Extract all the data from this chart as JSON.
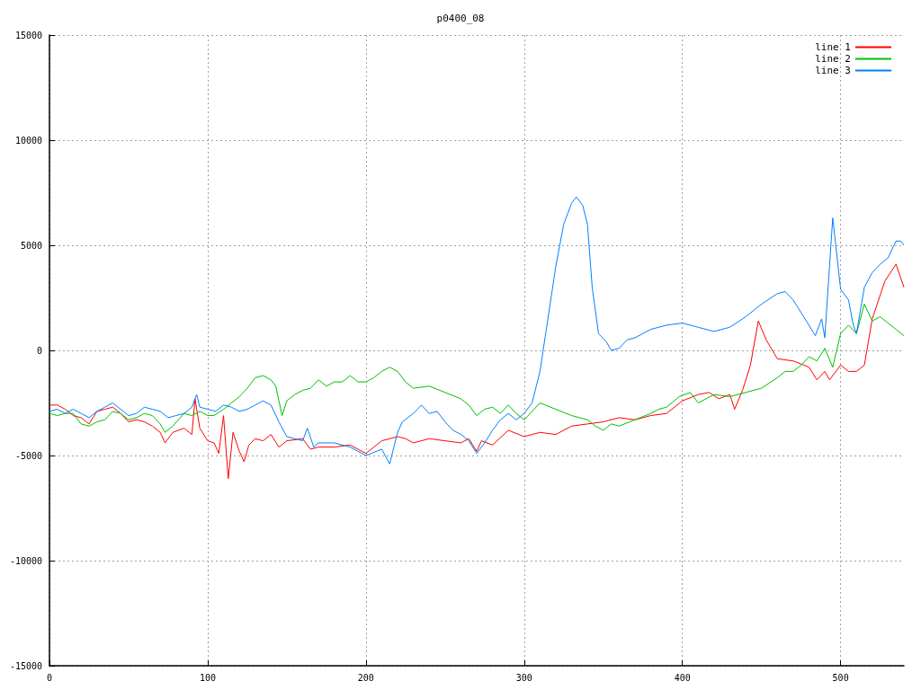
{
  "chart_data": {
    "type": "line",
    "title": "p0400_08",
    "xlim": [
      0,
      540
    ],
    "xticks": [
      0,
      100,
      200,
      300,
      400,
      500
    ],
    "ylim": [
      -15000,
      15000
    ],
    "yticks": [
      -15000,
      -10000,
      -5000,
      0,
      5000,
      10000,
      15000
    ],
    "grid": true,
    "legend": "top right",
    "marker": "none",
    "line_style": "solid",
    "series": [
      {
        "name": "line 1",
        "color": "#ff0000",
        "x": [
          0,
          5,
          10,
          15,
          20,
          25,
          30,
          35,
          40,
          45,
          50,
          55,
          60,
          65,
          70,
          73,
          78,
          85,
          90,
          92,
          95,
          100,
          104,
          107,
          110,
          113,
          116,
          120,
          123,
          126,
          130,
          135,
          140,
          145,
          150,
          160,
          165,
          170,
          180,
          190,
          200,
          205,
          210,
          215,
          220,
          225,
          230,
          240,
          250,
          260,
          265,
          270,
          273,
          280,
          290,
          300,
          310,
          320,
          330,
          340,
          350,
          360,
          370,
          380,
          390,
          400,
          410,
          417,
          423,
          430,
          433,
          438,
          443,
          448,
          453,
          460,
          470,
          480,
          485,
          490,
          493,
          500,
          505,
          510,
          515,
          520,
          528,
          535,
          540
        ],
        "values": [
          -2600,
          -2600,
          -2800,
          -3100,
          -3200,
          -3500,
          -2900,
          -2800,
          -2700,
          -3000,
          -3400,
          -3300,
          -3400,
          -3600,
          -3900,
          -4400,
          -3900,
          -3700,
          -4000,
          -2300,
          -3700,
          -4300,
          -4400,
          -4900,
          -3100,
          -6100,
          -3900,
          -4800,
          -5300,
          -4500,
          -4200,
          -4300,
          -4000,
          -4600,
          -4300,
          -4200,
          -4700,
          -4600,
          -4600,
          -4500,
          -4900,
          -4600,
          -4300,
          -4200,
          -4100,
          -4200,
          -4400,
          -4200,
          -4300,
          -4400,
          -4200,
          -4800,
          -4300,
          -4500,
          -3800,
          -4100,
          -3900,
          -4000,
          -3600,
          -3500,
          -3400,
          -3200,
          -3300,
          -3100,
          -3000,
          -2400,
          -2100,
          -2000,
          -2300,
          -2100,
          -2800,
          -1900,
          -700,
          1400,
          500,
          -400,
          -500,
          -800,
          -1400,
          -1000,
          -1400,
          -700,
          -1000,
          -1000,
          -700,
          1500,
          3300,
          4100,
          3000
        ]
      },
      {
        "name": "line 2",
        "color": "#00c000",
        "x": [
          0,
          5,
          10,
          15,
          20,
          25,
          30,
          35,
          40,
          45,
          50,
          55,
          60,
          65,
          70,
          73,
          78,
          85,
          90,
          95,
          100,
          104,
          110,
          115,
          120,
          125,
          130,
          135,
          140,
          143,
          147,
          150,
          155,
          160,
          165,
          170,
          175,
          180,
          185,
          190,
          195,
          200,
          205,
          210,
          215,
          220,
          225,
          230,
          240,
          250,
          260,
          265,
          270,
          275,
          280,
          285,
          290,
          295,
          300,
          310,
          320,
          330,
          340,
          345,
          350,
          355,
          360,
          370,
          380,
          385,
          390,
          398,
          405,
          410,
          420,
          430,
          440,
          450,
          460,
          465,
          470,
          475,
          480,
          485,
          490,
          495,
          500,
          505,
          510,
          515,
          520,
          525,
          530,
          535,
          540
        ],
        "values": [
          -3000,
          -3100,
          -3000,
          -3000,
          -3500,
          -3600,
          -3400,
          -3300,
          -2900,
          -3000,
          -3300,
          -3200,
          -3000,
          -3100,
          -3500,
          -3900,
          -3600,
          -3000,
          -3100,
          -2900,
          -3100,
          -3100,
          -2800,
          -2500,
          -2200,
          -1800,
          -1300,
          -1200,
          -1400,
          -1700,
          -3100,
          -2400,
          -2100,
          -1900,
          -1800,
          -1400,
          -1700,
          -1500,
          -1500,
          -1200,
          -1500,
          -1500,
          -1300,
          -1000,
          -800,
          -1000,
          -1500,
          -1800,
          -1700,
          -2000,
          -2300,
          -2600,
          -3100,
          -2800,
          -2700,
          -3000,
          -2600,
          -3000,
          -3300,
          -2500,
          -2800,
          -3100,
          -3300,
          -3600,
          -3800,
          -3500,
          -3600,
          -3300,
          -3000,
          -2800,
          -2700,
          -2200,
          -2000,
          -2500,
          -2100,
          -2200,
          -2000,
          -1800,
          -1300,
          -1000,
          -1000,
          -700,
          -300,
          -500,
          100,
          -800,
          800,
          1200,
          800,
          2200,
          1400,
          1600,
          1300,
          1000,
          700
        ]
      },
      {
        "name": "line 3",
        "color": "#0080ff",
        "x": [
          0,
          5,
          10,
          15,
          20,
          25,
          30,
          35,
          40,
          45,
          50,
          55,
          60,
          65,
          70,
          75,
          80,
          85,
          90,
          93,
          95,
          100,
          105,
          110,
          115,
          120,
          125,
          130,
          135,
          140,
          145,
          150,
          155,
          160,
          163,
          167,
          170,
          180,
          190,
          200,
          210,
          215,
          220,
          223,
          230,
          235,
          240,
          245,
          250,
          255,
          260,
          265,
          270,
          275,
          280,
          285,
          290,
          295,
          300,
          305,
          310,
          315,
          320,
          325,
          330,
          333,
          337,
          340,
          343,
          347,
          352,
          355,
          360,
          365,
          370,
          380,
          390,
          400,
          410,
          420,
          430,
          440,
          450,
          460,
          465,
          470,
          475,
          480,
          484,
          488,
          490,
          495,
          500,
          505,
          508,
          510,
          515,
          520,
          525,
          530,
          535,
          538,
          540
        ],
        "values": [
          -2900,
          -2800,
          -3000,
          -2800,
          -3000,
          -3200,
          -2900,
          -2700,
          -2500,
          -2800,
          -3100,
          -3000,
          -2700,
          -2800,
          -2900,
          -3200,
          -3100,
          -3000,
          -2700,
          -2100,
          -2700,
          -2800,
          -2900,
          -2600,
          -2700,
          -2900,
          -2800,
          -2600,
          -2400,
          -2600,
          -3400,
          -4100,
          -4200,
          -4300,
          -3700,
          -4600,
          -4400,
          -4400,
          -4600,
          -5000,
          -4700,
          -5400,
          -3900,
          -3400,
          -3000,
          -2600,
          -3000,
          -2900,
          -3400,
          -3800,
          -4000,
          -4300,
          -4900,
          -4400,
          -3800,
          -3300,
          -3000,
          -3300,
          -3000,
          -2500,
          -1000,
          1500,
          4000,
          6000,
          7000,
          7300,
          6900,
          6000,
          3000,
          800,
          400,
          0,
          100,
          500,
          600,
          1000,
          1200,
          1300,
          1100,
          900,
          1100,
          1600,
          2200,
          2700,
          2800,
          2400,
          1800,
          1200,
          700,
          1500,
          600,
          6300,
          2900,
          2400,
          1200,
          800,
          3000,
          3700,
          4100,
          4400,
          5200,
          5200,
          5000
        ]
      }
    ]
  }
}
